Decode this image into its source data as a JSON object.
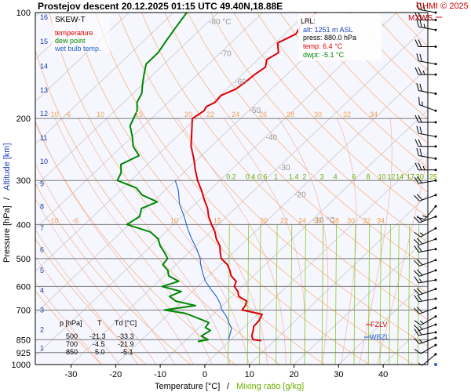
{
  "header": {
    "title": "Prostejov   descent  20.12.2025 01:15 UTC  49.40N,18.88E",
    "copyright": "CHMI © 2025",
    "mxws": "MXWS"
  },
  "legend": {
    "name": "SKEW-T",
    "temperature": "temperature",
    "dew_point": "dew point",
    "wet_bulb": "wet bulb temp."
  },
  "lrl": {
    "label": "LRL:",
    "alt": "alt: 1251 m ASL",
    "press": "press: 880.0 hPa",
    "temp": "temp: 6.4 °C",
    "dwpt": "dwpt: -5.1 °C"
  },
  "table": {
    "headers": [
      "p [hPa]",
      "T",
      "Td [°C]"
    ],
    "rows": [
      [
        "500",
        "-21.3",
        "-33.3"
      ],
      [
        "700",
        "-4.5",
        "-21.9"
      ],
      [
        "850",
        "5.0",
        "-5.1"
      ]
    ]
  },
  "levels": {
    "fzlv": "FZLV",
    "wbzl": "WBZL"
  },
  "axes": {
    "xlabel_temp": "Temperature [°C]",
    "xlabel_sep": "/",
    "xlabel_mix": "Mixing ratio [g/kg]",
    "ylabel_pres": "Pressure [hPa]",
    "ylabel_sep": "/",
    "ylabel_alt": "Altitude [km]"
  },
  "colors": {
    "temperature": "#e00000",
    "dew_point": "#008800",
    "wet_bulb": "#2060d0",
    "dry_adiabat": "#f6b070",
    "moist_adiabat": "#eeb8a0",
    "mixing_ratio": "#88cc22",
    "isobar": "#7a7a7a",
    "isotherm": "#c9c9c9",
    "plot_bg": "#f6f6ff"
  },
  "chart_data": {
    "type": "line",
    "skew": true,
    "pressure_ticks": [
      100,
      200,
      300,
      400,
      500,
      600,
      700,
      850,
      925,
      1000
    ],
    "altitude_ticks_km": [
      "1",
      "2",
      "3",
      "4",
      "5",
      "6",
      "7",
      "8",
      "9",
      "10",
      "11",
      "12",
      "13",
      "14",
      "15",
      "16"
    ],
    "altitude_pressures": [
      898,
      795,
      701,
      616,
      540,
      472,
      410,
      356,
      307,
      265,
      227,
      194,
      166,
      142,
      121,
      103
    ],
    "x_ticks": [
      -30,
      -20,
      -10,
      0,
      10,
      20,
      30,
      40
    ],
    "xlim": [
      -38,
      50
    ],
    "ylim": [
      100,
      1000
    ],
    "isotherm_labels": [
      {
        "t": -80,
        "p": 108,
        "text": "-80 °C"
      },
      {
        "t": -70,
        "p": 133,
        "text": "-70"
      },
      {
        "t": -60,
        "p": 160,
        "text": "-60"
      },
      {
        "t": -50,
        "p": 193,
        "text": "-50"
      },
      {
        "t": -40,
        "p": 230,
        "text": "-40"
      },
      {
        "t": -30,
        "p": 280,
        "text": "-30"
      },
      {
        "t": -20,
        "p": 335,
        "text": "-20"
      },
      {
        "t": -10,
        "p": 395,
        "text": "-10 °C"
      }
    ],
    "mixing_ratio_values": [
      "0.2",
      "0.4",
      "0.6",
      "1",
      "1.4",
      "2",
      "3",
      "4",
      "6",
      "8",
      "10",
      "12",
      "14",
      "17",
      "20",
      "25"
    ],
    "mixing_ratio_temps_at_400": [
      -27.5,
      -23.2,
      -20.5,
      -16.8,
      -13.5,
      -10.4,
      -6.5,
      -3.5,
      0.7,
      3.9,
      6.5,
      8.6,
      10.5,
      12.9,
      15.0,
      18.0
    ],
    "dry_adiabat_labels_upper": [
      "-10",
      "-6",
      "10",
      "15",
      "20",
      "22",
      "24",
      "26",
      "28",
      "30",
      "32",
      "34"
    ],
    "dry_adiabat_labels_lower": [
      "-10",
      "-6",
      "10",
      "15",
      "20",
      "22",
      "24",
      "26",
      "28",
      "30",
      "32",
      "34"
    ],
    "series": [
      {
        "name": "temperature",
        "points": [
          [
            855,
            7.0
          ],
          [
            850,
            5.0
          ],
          [
            830,
            3.8
          ],
          [
            800,
            2.8
          ],
          [
            780,
            2.0
          ],
          [
            750,
            1.8
          ],
          [
            720,
            1.0
          ],
          [
            700,
            -4.5
          ],
          [
            680,
            -4.8
          ],
          [
            660,
            -5.6
          ],
          [
            640,
            -8.5
          ],
          [
            620,
            -9.8
          ],
          [
            600,
            -11.8
          ],
          [
            580,
            -12.6
          ],
          [
            560,
            -15.0
          ],
          [
            540,
            -16.6
          ],
          [
            520,
            -18.5
          ],
          [
            500,
            -21.3
          ],
          [
            480,
            -23.0
          ],
          [
            460,
            -24.6
          ],
          [
            440,
            -27.0
          ],
          [
            420,
            -29.0
          ],
          [
            400,
            -31.5
          ],
          [
            380,
            -34.0
          ],
          [
            360,
            -36.2
          ],
          [
            340,
            -39.0
          ],
          [
            320,
            -41.8
          ],
          [
            300,
            -45.0
          ],
          [
            280,
            -48.0
          ],
          [
            260,
            -51.0
          ],
          [
            240,
            -54.5
          ],
          [
            220,
            -57.5
          ],
          [
            200,
            -60.8
          ],
          [
            190,
            -60.0
          ],
          [
            185,
            -60.5
          ],
          [
            180,
            -59.5
          ],
          [
            172,
            -59.8
          ],
          [
            165,
            -58.0
          ],
          [
            158,
            -57.5
          ],
          [
            150,
            -57.2
          ],
          [
            143,
            -56.5
          ],
          [
            136,
            -58.0
          ],
          [
            130,
            -57.0
          ],
          [
            122,
            -59.5
          ],
          [
            115,
            -57.5
          ],
          [
            108,
            -58.5
          ],
          [
            100,
            -58.0
          ]
        ]
      },
      {
        "name": "dew point",
        "points": [
          [
            860,
            -7.0
          ],
          [
            850,
            -5.1
          ],
          [
            830,
            -7.5
          ],
          [
            800,
            -6.8
          ],
          [
            785,
            -8.6
          ],
          [
            760,
            -9.0
          ],
          [
            735,
            -13.0
          ],
          [
            715,
            -16.5
          ],
          [
            700,
            -21.9
          ],
          [
            680,
            -16.0
          ],
          [
            660,
            -21.5
          ],
          [
            640,
            -24.0
          ],
          [
            620,
            -22.5
          ],
          [
            600,
            -28.0
          ],
          [
            580,
            -25.5
          ],
          [
            560,
            -29.0
          ],
          [
            540,
            -30.5
          ],
          [
            520,
            -33.0
          ],
          [
            500,
            -33.3
          ],
          [
            480,
            -35.5
          ],
          [
            460,
            -38.0
          ],
          [
            440,
            -40.0
          ],
          [
            420,
            -43.5
          ],
          [
            400,
            -50.5
          ],
          [
            380,
            -49.5
          ],
          [
            360,
            -51.0
          ],
          [
            345,
            -49.0
          ],
          [
            330,
            -54.0
          ],
          [
            315,
            -57.0
          ],
          [
            300,
            -63.0
          ],
          [
            285,
            -64.0
          ],
          [
            270,
            -66.0
          ],
          [
            255,
            -64.0
          ],
          [
            240,
            -67.5
          ],
          [
            225,
            -70.0
          ],
          [
            210,
            -73.0
          ],
          [
            200,
            -74.0
          ],
          [
            190,
            -75.0
          ],
          [
            180,
            -77.0
          ],
          [
            170,
            -78.0
          ],
          [
            160,
            -80.0
          ],
          [
            150,
            -82.0
          ],
          [
            140,
            -84.0
          ],
          [
            130,
            -84.0
          ],
          [
            120,
            -85.0
          ],
          [
            110,
            -86.0
          ],
          [
            100,
            -87.0
          ]
        ]
      },
      {
        "name": "wet bulb temp.",
        "points": [
          [
            850,
            -0.5
          ],
          [
            820,
            -1.5
          ],
          [
            790,
            -2.5
          ],
          [
            760,
            -4.5
          ],
          [
            730,
            -6.5
          ],
          [
            700,
            -9.0
          ],
          [
            670,
            -11.0
          ],
          [
            640,
            -13.5
          ],
          [
            610,
            -16.5
          ],
          [
            580,
            -19.5
          ],
          [
            550,
            -22.0
          ],
          [
            520,
            -24.5
          ],
          [
            500,
            -26.0
          ],
          [
            470,
            -29.0
          ],
          [
            440,
            -32.5
          ],
          [
            410,
            -36.0
          ],
          [
            380,
            -39.5
          ],
          [
            350,
            -43.5
          ],
          [
            320,
            -47.0
          ],
          [
            300,
            -50.0
          ]
        ]
      }
    ],
    "wind_barbs": [
      {
        "p": 1000,
        "dir": 0,
        "spd": 0
      },
      {
        "p": 935,
        "dir": 230,
        "spd": 5
      },
      {
        "p": 880,
        "dir": 240,
        "spd": 10
      },
      {
        "p": 840,
        "dir": 250,
        "spd": 15
      },
      {
        "p": 810,
        "dir": 260,
        "spd": 20
      },
      {
        "p": 770,
        "dir": 250,
        "spd": 15
      },
      {
        "p": 730,
        "dir": 240,
        "spd": 15
      },
      {
        "p": 690,
        "dir": 250,
        "spd": 20
      },
      {
        "p": 650,
        "dir": 260,
        "spd": 20
      },
      {
        "p": 610,
        "dir": 250,
        "spd": 20
      },
      {
        "p": 575,
        "dir": 260,
        "spd": 15
      },
      {
        "p": 540,
        "dir": 250,
        "spd": 20
      },
      {
        "p": 505,
        "dir": 250,
        "spd": 20
      },
      {
        "p": 470,
        "dir": 260,
        "spd": 20
      },
      {
        "p": 440,
        "dir": 250,
        "spd": 20
      },
      {
        "p": 410,
        "dir": 240,
        "spd": 15
      },
      {
        "p": 380,
        "dir": 250,
        "spd": 20
      },
      {
        "p": 355,
        "dir": 220,
        "spd": 15
      },
      {
        "p": 330,
        "dir": 250,
        "spd": 20
      },
      {
        "p": 300,
        "dir": 260,
        "spd": 20
      },
      {
        "p": 280,
        "dir": 270,
        "spd": 25
      },
      {
        "p": 260,
        "dir": 280,
        "spd": 20
      },
      {
        "p": 240,
        "dir": 270,
        "spd": 20
      },
      {
        "p": 225,
        "dir": 280,
        "spd": 20
      },
      {
        "p": 205,
        "dir": 270,
        "spd": 20
      },
      {
        "p": 190,
        "dir": 290,
        "spd": 15
      },
      {
        "p": 170,
        "dir": 280,
        "spd": 20
      },
      {
        "p": 150,
        "dir": 270,
        "spd": 25
      },
      {
        "p": 140,
        "dir": 280,
        "spd": 20
      },
      {
        "p": 125,
        "dir": 270,
        "spd": 20
      },
      {
        "p": 112,
        "dir": 280,
        "spd": 25
      },
      {
        "p": 105,
        "dir": 270,
        "spd": 20
      },
      {
        "p": 100,
        "dir": 280,
        "spd": 25
      }
    ]
  }
}
